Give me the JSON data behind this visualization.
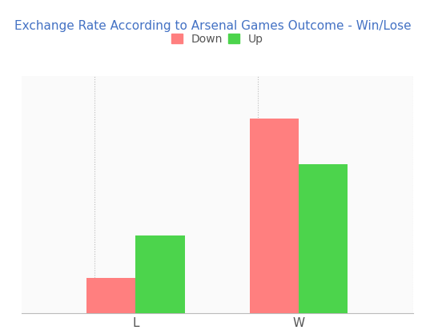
{
  "title": "Exchange Rate According to Arsenal Games Outcome - Win/Lose",
  "categories": [
    "L",
    "W"
  ],
  "series": {
    "Down": [
      15,
      82
    ],
    "Up": [
      33,
      63
    ]
  },
  "colors": {
    "Down": "#FF7F7F",
    "Up": "#4CD44C"
  },
  "background_color": "#FFFFFF",
  "plot_bg_color": "#FAFAFA",
  "grid_color": "#BBBBBB",
  "title_color": "#4472C4",
  "bar_width": 0.3,
  "ylim": [
    0,
    100
  ],
  "xtick_color": "#555555",
  "legend_fontsize": 10,
  "title_fontsize": 11,
  "figsize": [
    5.32,
    4.12
  ],
  "dpi": 100
}
